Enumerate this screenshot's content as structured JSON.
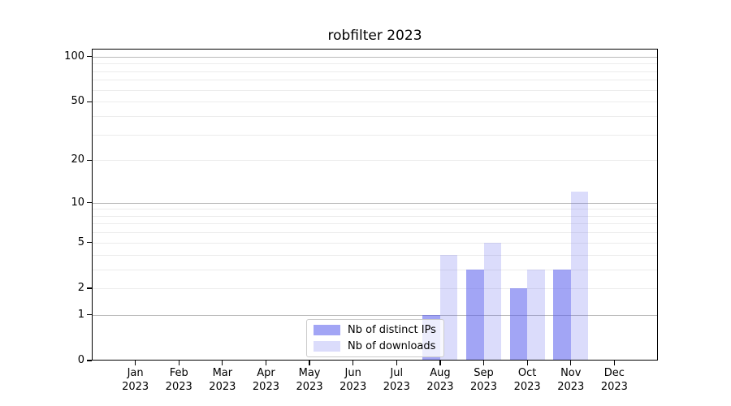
{
  "figure": {
    "background": "#ffffff"
  },
  "chart_data": {
    "type": "bar",
    "title": "robfilter 2023",
    "xlabel": "",
    "ylabel": "",
    "year": "2023",
    "categories": [
      "Jan",
      "Feb",
      "Mar",
      "Apr",
      "May",
      "Jun",
      "Jul",
      "Aug",
      "Sep",
      "Oct",
      "Nov",
      "Dec"
    ],
    "series": [
      {
        "name": "Nb of distinct IPs",
        "color": "rgba(90, 95, 238, 0.56)",
        "values": [
          0,
          0,
          0,
          0,
          0,
          0,
          0,
          1,
          3,
          2,
          3,
          0
        ]
      },
      {
        "name": "Nb of downloads",
        "color": "rgba(90, 95, 238, 0.22)",
        "values": [
          0,
          0,
          0,
          0,
          0,
          0,
          0,
          4,
          5,
          3,
          12,
          0
        ]
      }
    ],
    "scale": "log1p",
    "ylim": [
      0,
      113
    ],
    "y_ticks": [
      100,
      50,
      20,
      10,
      5,
      2,
      1,
      0
    ],
    "grid": {
      "major": [
        1,
        10,
        100
      ],
      "minor": [
        2,
        3,
        4,
        5,
        6,
        7,
        8,
        9,
        20,
        30,
        40,
        50,
        60,
        70,
        80,
        90
      ],
      "on": true
    },
    "legend_position": "bottom-center",
    "colors": {
      "grid_major": "#bbbbbb",
      "grid_minor": "#ececec",
      "axis": "#000000",
      "text": "#000000"
    }
  }
}
